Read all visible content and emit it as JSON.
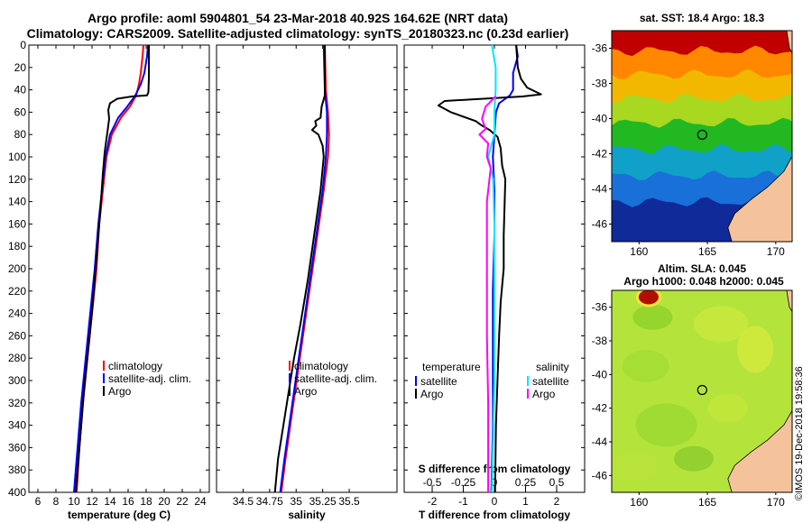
{
  "header": {
    "line1": "Argo profile: aoml 5904801_54 23-Mar-2018 40.92S 164.62E (NRT data)",
    "line2": "Climatology: CARS2009. Satellite-adjusted climatology: synTS_20180323.nc (0.23d earlier)"
  },
  "chart_data": [
    {
      "type": "line",
      "name": "temperature profile",
      "xlabel": "temperature (deg C)",
      "xlim": [
        5,
        25
      ],
      "xticks": [
        6,
        8,
        10,
        12,
        14,
        16,
        18,
        20,
        22,
        24
      ],
      "ylim": [
        0,
        400
      ],
      "yticks": [
        0,
        20,
        40,
        60,
        80,
        100,
        120,
        140,
        160,
        180,
        200,
        220,
        240,
        260,
        280,
        300,
        320,
        340,
        360,
        380,
        400
      ],
      "y_reversed": true,
      "legend": [
        "climatology",
        "satellite-adj. clim.",
        "Argo"
      ],
      "series": [
        {
          "name": "climatology",
          "color": "#ff0000",
          "points": [
            [
              17.7,
              0
            ],
            [
              17.6,
              10
            ],
            [
              17.4,
              25
            ],
            [
              17.2,
              35
            ],
            [
              16.9,
              45
            ],
            [
              16.2,
              55
            ],
            [
              15.2,
              65
            ],
            [
              14.2,
              80
            ],
            [
              13.6,
              100
            ],
            [
              13.2,
              130
            ],
            [
              12.8,
              160
            ],
            [
              12.5,
              200
            ],
            [
              12.0,
              240
            ],
            [
              11.5,
              280
            ],
            [
              11.0,
              320
            ],
            [
              10.6,
              360
            ],
            [
              10.3,
              400
            ]
          ]
        },
        {
          "name": "satellite-adj. clim.",
          "color": "#0000ff",
          "points": [
            [
              18.2,
              0
            ],
            [
              18.1,
              10
            ],
            [
              17.8,
              25
            ],
            [
              17.4,
              35
            ],
            [
              16.8,
              45
            ],
            [
              15.9,
              55
            ],
            [
              14.9,
              65
            ],
            [
              14.0,
              80
            ],
            [
              13.5,
              100
            ],
            [
              13.1,
              130
            ],
            [
              12.7,
              160
            ],
            [
              12.3,
              200
            ],
            [
              11.8,
              240
            ],
            [
              11.3,
              280
            ],
            [
              10.8,
              320
            ],
            [
              10.4,
              360
            ],
            [
              10.0,
              400
            ]
          ]
        },
        {
          "name": "Argo",
          "color": "#000000",
          "points": [
            [
              18.3,
              0
            ],
            [
              18.3,
              30
            ],
            [
              18.25,
              42
            ],
            [
              18.1,
              45
            ],
            [
              16.4,
              46
            ],
            [
              14.8,
              48
            ],
            [
              14.0,
              52
            ],
            [
              13.8,
              58
            ],
            [
              13.9,
              66
            ],
            [
              13.7,
              78
            ],
            [
              13.4,
              96
            ],
            [
              13.2,
              115
            ],
            [
              12.9,
              150
            ],
            [
              12.5,
              190
            ],
            [
              12.1,
              230
            ],
            [
              11.6,
              270
            ],
            [
              11.1,
              310
            ],
            [
              10.7,
              350
            ],
            [
              10.2,
              400
            ]
          ]
        }
      ]
    },
    {
      "type": "line",
      "name": "salinity profile",
      "xlabel": "salinity",
      "xlim": [
        34.25,
        35.95
      ],
      "xticks": [
        34.5,
        34.75,
        35,
        35.25,
        35.5
      ],
      "xtick_labels": [
        "34.5",
        "34.75",
        "35",
        "35.25",
        "35.5"
      ],
      "ylim": [
        0,
        400
      ],
      "y_reversed": true,
      "legend": [
        "climatology",
        "satellite-adj. clim.",
        "Argo"
      ],
      "series": [
        {
          "name": "climatology",
          "color": "#ff0000",
          "points": [
            [
              35.27,
              0
            ],
            [
              35.28,
              40
            ],
            [
              35.3,
              60
            ],
            [
              35.31,
              80
            ],
            [
              35.3,
              100
            ],
            [
              35.26,
              130
            ],
            [
              35.2,
              170
            ],
            [
              35.14,
              210
            ],
            [
              35.08,
              250
            ],
            [
              35.02,
              290
            ],
            [
              34.96,
              330
            ],
            [
              34.9,
              370
            ],
            [
              34.86,
              400
            ]
          ]
        },
        {
          "name": "satellite-adj. clim.",
          "color": "#0000ff",
          "points": [
            [
              35.26,
              0
            ],
            [
              35.27,
              40
            ],
            [
              35.29,
              60
            ],
            [
              35.29,
              80
            ],
            [
              35.28,
              100
            ],
            [
              35.25,
              130
            ],
            [
              35.19,
              170
            ],
            [
              35.13,
              210
            ],
            [
              35.07,
              250
            ],
            [
              35.01,
              290
            ],
            [
              34.95,
              330
            ],
            [
              34.89,
              370
            ],
            [
              34.85,
              400
            ]
          ]
        },
        {
          "name": "Argo",
          "color": "#000000",
          "points": [
            [
              35.27,
              0
            ],
            [
              35.27,
              30
            ],
            [
              35.27,
              45
            ],
            [
              35.24,
              55
            ],
            [
              35.23,
              65
            ],
            [
              35.18,
              68
            ],
            [
              35.19,
              72
            ],
            [
              35.15,
              76
            ],
            [
              35.21,
              80
            ],
            [
              35.25,
              90
            ],
            [
              35.26,
              100
            ],
            [
              35.23,
              130
            ],
            [
              35.17,
              170
            ],
            [
              35.11,
              210
            ],
            [
              35.04,
              250
            ],
            [
              34.98,
              280
            ],
            [
              34.93,
              310
            ],
            [
              34.88,
              340
            ],
            [
              34.83,
              370
            ],
            [
              34.8,
              400
            ]
          ]
        }
      ]
    },
    {
      "type": "line",
      "name": "difference from climatology",
      "xlabel": "T difference from climatology",
      "xlim": [
        -2.9,
        2.9
      ],
      "xticks": [
        -2,
        -1,
        0,
        1,
        2
      ],
      "top_axis_label": "S difference from climatology",
      "top_xticks": [
        -0.5,
        -0.25,
        0,
        0.25,
        0.5
      ],
      "top_xtick_labels": [
        "-0.5",
        "-0.25",
        "0",
        "0.25",
        "0.5"
      ],
      "ylim": [
        0,
        400
      ],
      "y_reversed": true,
      "legend_left_title": "temperature",
      "legend_right_title": "salinity",
      "legend_left": [
        "satellite",
        "Argo"
      ],
      "legend_right": [
        "satellite",
        "Argo"
      ],
      "series": [
        {
          "name": "temperature satellite",
          "color": "#0000ff",
          "points": [
            [
              0.7,
              0
            ],
            [
              0.75,
              10
            ],
            [
              0.6,
              25
            ],
            [
              0.6,
              40
            ],
            [
              0.5,
              45
            ],
            [
              0.15,
              52
            ],
            [
              0.05,
              60
            ],
            [
              0.0,
              80
            ],
            [
              -0.05,
              100
            ],
            [
              0.0,
              130
            ],
            [
              0.0,
              170
            ],
            [
              -0.05,
              220
            ],
            [
              -0.05,
              280
            ],
            [
              -0.05,
              340
            ],
            [
              -0.1,
              400
            ]
          ]
        },
        {
          "name": "temperature Argo",
          "color": "#000000",
          "points": [
            [
              0.7,
              0
            ],
            [
              0.75,
              20
            ],
            [
              0.85,
              30
            ],
            [
              1.05,
              38
            ],
            [
              1.5,
              44
            ],
            [
              0.9,
              46
            ],
            [
              -1.6,
              50
            ],
            [
              -1.8,
              54
            ],
            [
              -1.4,
              60
            ],
            [
              -0.6,
              68
            ],
            [
              -0.4,
              72
            ],
            [
              -0.15,
              76
            ],
            [
              0.1,
              82
            ],
            [
              0.2,
              92
            ],
            [
              0.25,
              108
            ],
            [
              0.35,
              120
            ],
            [
              0.3,
              170
            ],
            [
              0.3,
              200
            ],
            [
              0.2,
              230
            ],
            [
              0.15,
              260
            ],
            [
              0.1,
              300
            ],
            [
              0.05,
              340
            ],
            [
              0.02,
              400
            ]
          ]
        },
        {
          "name": "salinity satellite",
          "color": "#00e5ff",
          "points": [
            [
              -0.02,
              0
            ],
            [
              0.01,
              20
            ],
            [
              0.01,
              40
            ],
            [
              0.0,
              60
            ],
            [
              0.0,
              80
            ],
            [
              -0.05,
              100
            ],
            [
              -0.01,
              120
            ],
            [
              0.0,
              160
            ],
            [
              0.0,
              220
            ],
            [
              0.0,
              300
            ],
            [
              -0.02,
              400
            ]
          ]
        },
        {
          "name": "salinity Argo",
          "color": "#ff00ff",
          "points": [
            [
              0.01,
              46
            ],
            [
              -0.07,
              55
            ],
            [
              -0.1,
              66
            ],
            [
              -0.07,
              75
            ],
            [
              -0.12,
              80
            ],
            [
              -0.05,
              88
            ],
            [
              -0.06,
              100
            ],
            [
              -0.03,
              110
            ],
            [
              -0.06,
              140
            ],
            [
              -0.06,
              200
            ],
            [
              -0.06,
              260
            ],
            [
              -0.05,
              320
            ],
            [
              -0.05,
              400
            ]
          ]
        }
      ]
    },
    {
      "type": "heatmap",
      "name": "sea surface temperature map",
      "title": "sat. SST: 18.4 Argo: 18.3",
      "xlim": [
        158,
        171.2
      ],
      "xticks": [
        160,
        165,
        170
      ],
      "ylim": [
        -47,
        -35
      ],
      "yticks": [
        -36,
        -38,
        -40,
        -42,
        -44,
        -46
      ],
      "argo_location": [
        164.62,
        -40.92
      ],
      "bands": [
        {
          "lat": -35.5,
          "color": "#c00000"
        },
        {
          "lat": -36.8,
          "color": "#ff8800"
        },
        {
          "lat": -38.2,
          "color": "#f2b800"
        },
        {
          "lat": -39.5,
          "color": "#a8d820"
        },
        {
          "lat": -41.0,
          "color": "#22b822"
        },
        {
          "lat": -42.5,
          "color": "#10a0c8"
        },
        {
          "lat": -44.0,
          "color": "#1870d8"
        },
        {
          "lat": -45.5,
          "color": "#102a9a"
        }
      ]
    },
    {
      "type": "heatmap",
      "name": "sea level anomaly map",
      "title_line1": "Altim. SLA: 0.045",
      "title_line2": "Argo h1000: 0.048 h2000: 0.045",
      "xlim": [
        158,
        171.2
      ],
      "xticks": [
        160,
        165,
        170
      ],
      "ylim": [
        -47,
        -35
      ],
      "yticks": [
        -36,
        -38,
        -40,
        -42,
        -44,
        -46
      ],
      "argo_location": [
        164.62,
        -40.92
      ],
      "background_color": "#b4e43c",
      "eddy_color": "#b01000"
    }
  ],
  "footer": {
    "stamp": "©IMOS 19-Dec-2018 19:58:36"
  },
  "colors": {
    "land": "#f5c39b",
    "axis": "#000000"
  }
}
